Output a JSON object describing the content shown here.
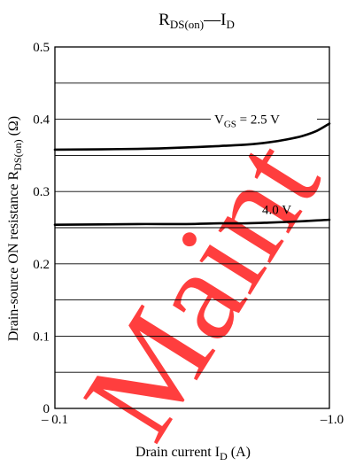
{
  "chart_data": {
    "type": "line",
    "title": {
      "main": "R",
      "main_sub": "DS(on)",
      "dash": "—",
      "var": "I",
      "var_sub": "D"
    },
    "xlabel": {
      "text": "Drain current  I",
      "sub": "D",
      "unit": "  (A)"
    },
    "ylabel": {
      "text": "Drain-source ON resistance  R",
      "sub": "DS(on)",
      "unit": "  (Ω)"
    },
    "x_ticks": [
      "– 0.1",
      "–1.0"
    ],
    "y_ticks": [
      "0",
      "0.1",
      "0.2",
      "0.3",
      "0.4",
      "0.5"
    ],
    "xlim": [
      -0.1,
      -1.0
    ],
    "ylim": [
      0,
      0.5
    ],
    "grid_y": [
      0.05,
      0.1,
      0.15,
      0.2,
      0.25,
      0.3,
      0.35,
      0.4,
      0.45
    ],
    "grid": true,
    "series": [
      {
        "name": "V_GS = 2.5 V",
        "label_parts": {
          "main": "V",
          "sub": "GS",
          "rest": " = 2.5 V"
        },
        "x": [
          -0.1,
          -0.2,
          -0.3,
          -0.4,
          -0.5,
          -0.6,
          -0.7,
          -0.8,
          -0.9,
          -1.0
        ],
        "y": [
          0.358,
          0.359,
          0.361,
          0.363,
          0.365,
          0.368,
          0.372,
          0.377,
          0.384,
          0.394
        ]
      },
      {
        "name": "4.0 V",
        "label_parts": {
          "main": "4.0 V",
          "sub": "",
          "rest": ""
        },
        "x": [
          -0.1,
          -0.2,
          -0.3,
          -0.4,
          -0.5,
          -0.6,
          -0.7,
          -0.8,
          -0.9,
          -1.0
        ],
        "y": [
          0.254,
          0.255,
          0.255,
          0.256,
          0.256,
          0.257,
          0.258,
          0.259,
          0.26,
          0.261
        ]
      }
    ]
  },
  "watermark": {
    "text": "Maint",
    "color": "#ff2a2a"
  },
  "colors": {
    "line": "#000000",
    "grid": "#000000"
  }
}
